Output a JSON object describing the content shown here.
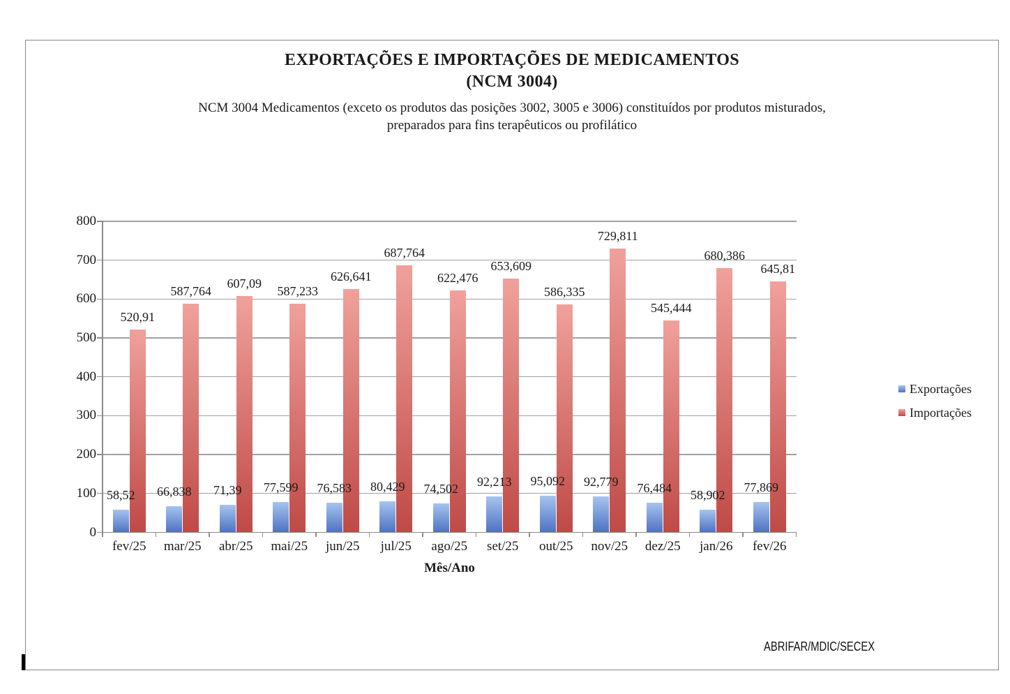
{
  "header": {
    "title_line1": "EXPORTAÇÕES E IMPORTAÇÕES DE MEDICAMENTOS",
    "title_line2": "(NCM 3004)",
    "subtitle_line1": "NCM 3004 Medicamentos (exceto os produtos das posições 3002, 3005 e 3006) constituídos por produtos misturados,",
    "subtitle_line2": "preparados para fins terapêuticos ou profilático"
  },
  "chart_data": {
    "type": "bar",
    "title": "EXPORTAÇÕES E IMPORTAÇÕES DE MEDICAMENTOS (NCM 3004)",
    "categories": [
      "fev/25",
      "mar/25",
      "abr/25",
      "mai/25",
      "jun/25",
      "jul/25",
      "ago/25",
      "set/25",
      "out/25",
      "nov/25",
      "dez/25",
      "jan/26",
      "fev/26"
    ],
    "series": [
      {
        "name": "Exportações",
        "values": [
          58.52,
          66.838,
          71.39,
          77.599,
          76.583,
          80.429,
          74.502,
          92.213,
          95.092,
          92.779,
          76.484,
          58.902,
          77.869
        ],
        "value_labels": [
          "58,52",
          "66,838",
          "71,39",
          "77,599",
          "76,583",
          "80,429",
          "74,502",
          "92,213",
          "95,092",
          "92,779",
          "76,484",
          "58,902",
          "77,869"
        ],
        "color_top": "#a6c4ef",
        "color_bottom": "#4e73c2"
      },
      {
        "name": "Importações",
        "values": [
          520.91,
          587.764,
          607.09,
          587.233,
          626.641,
          687.764,
          622.476,
          653.609,
          586.335,
          729.811,
          545.444,
          680.386,
          645.81
        ],
        "value_labels": [
          "520,91",
          "587,764",
          "607,09",
          "587,233",
          "626,641",
          "687,764",
          "622,476",
          "653,609",
          "586,335",
          "729,811",
          "545,444",
          "680,386",
          "645,81"
        ],
        "color_top": "#f0a19b",
        "color_bottom": "#bf4a46"
      }
    ],
    "xlabel": "Mês/Ano",
    "ylabel": "",
    "ylim": [
      0,
      800
    ],
    "yticks": [
      0,
      100,
      200,
      300,
      400,
      500,
      600,
      700,
      800
    ],
    "grid": true,
    "legend_position": "right"
  },
  "footer": {
    "source": "ABRIFAR/MDIC/SECEX"
  }
}
